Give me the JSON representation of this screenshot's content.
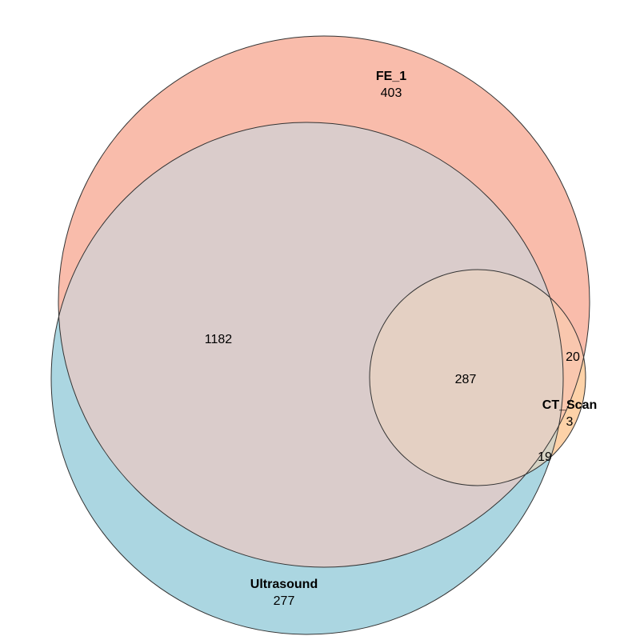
{
  "sets": {
    "fe1": {
      "name": "FE_1",
      "only_count": "403",
      "color": "#F9BCAB"
    },
    "ultrasound": {
      "name": "Ultrasound",
      "only_count": "277",
      "color": "#ABD6E1"
    },
    "ctscan": {
      "name": "CT_Scan",
      "only_count": "3",
      "color": "#FDD2A8"
    }
  },
  "overlaps": {
    "fe1_ultrasound": "1182",
    "all_three": "287",
    "fe1_ctscan": "20",
    "ultrasound_ctscan": "19"
  }
}
